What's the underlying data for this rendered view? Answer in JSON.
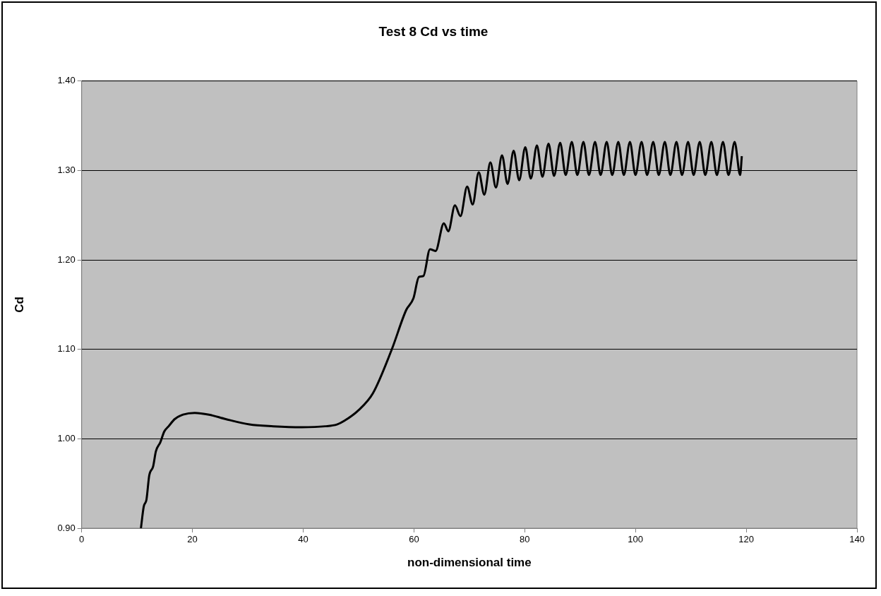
{
  "chart_data": {
    "type": "line",
    "title": "Test 8 Cd vs time",
    "xlabel": "non-dimensional time",
    "ylabel": "Cd",
    "x": [
      10.7,
      11.2,
      11.7,
      12.2,
      12.9,
      13.4,
      14.2,
      14.9,
      15.7,
      16.8,
      18.3,
      20.4,
      23.0,
      26.0,
      30.3,
      34.6,
      39.7,
      44.0,
      46.1,
      47.4,
      50.0,
      52.6,
      56.0,
      58.6,
      59.9,
      60.9,
      61.7,
      62.9,
      63.9,
      65.4,
      66.2,
      67.4,
      68.4,
      69.6,
      70.6,
      71.7,
      72.7,
      73.8,
      74.8,
      75.9,
      76.9,
      78.0,
      79.0,
      80.1,
      81.1,
      82.2,
      83.2,
      84.3,
      85.3,
      86.4,
      87.4,
      88.5,
      89.5,
      90.6,
      91.6,
      92.7,
      93.7,
      94.8,
      95.8,
      96.9,
      97.9,
      99.0,
      100.0,
      101.1,
      102.1,
      103.2,
      104.2,
      105.3,
      106.3,
      107.4,
      108.4,
      109.5,
      110.5,
      111.6,
      112.6,
      113.7,
      114.7,
      115.8,
      116.8,
      117.9,
      118.9,
      119.2
    ],
    "series": [
      {
        "color": "#000000",
        "values": [
          0.9,
          0.924,
          0.932,
          0.959,
          0.969,
          0.986,
          0.996,
          1.008,
          1.014,
          1.022,
          1.027,
          1.029,
          1.027,
          1.022,
          1.016,
          1.014,
          1.013,
          1.014,
          1.016,
          1.02,
          1.032,
          1.051,
          1.1,
          1.144,
          1.157,
          1.181,
          1.182,
          1.212,
          1.21,
          1.241,
          1.232,
          1.261,
          1.249,
          1.282,
          1.262,
          1.298,
          1.273,
          1.309,
          1.281,
          1.317,
          1.285,
          1.322,
          1.289,
          1.326,
          1.291,
          1.328,
          1.293,
          1.33,
          1.294,
          1.331,
          1.295,
          1.332,
          1.295,
          1.332,
          1.295,
          1.332,
          1.295,
          1.332,
          1.295,
          1.332,
          1.295,
          1.332,
          1.295,
          1.332,
          1.295,
          1.332,
          1.295,
          1.332,
          1.295,
          1.332,
          1.295,
          1.332,
          1.295,
          1.332,
          1.295,
          1.332,
          1.295,
          1.332,
          1.295,
          1.332,
          1.295,
          1.316
        ]
      }
    ],
    "xlim": [
      0,
      140
    ],
    "xticks": [
      0,
      20,
      40,
      60,
      80,
      100,
      120,
      140
    ],
    "ylim": [
      0.9,
      1.4
    ],
    "yticks": [
      {
        "value": 0.9,
        "label": "0.90"
      },
      {
        "value": 1.0,
        "label": "1.00"
      },
      {
        "value": 1.1,
        "label": "1.10"
      },
      {
        "value": 1.2,
        "label": "1.20"
      },
      {
        "value": 1.3,
        "label": "1.30"
      },
      {
        "value": 1.4,
        "label": "1.40"
      }
    ],
    "grid": "y",
    "legend": false,
    "marker": "none",
    "line_style": "solid"
  }
}
